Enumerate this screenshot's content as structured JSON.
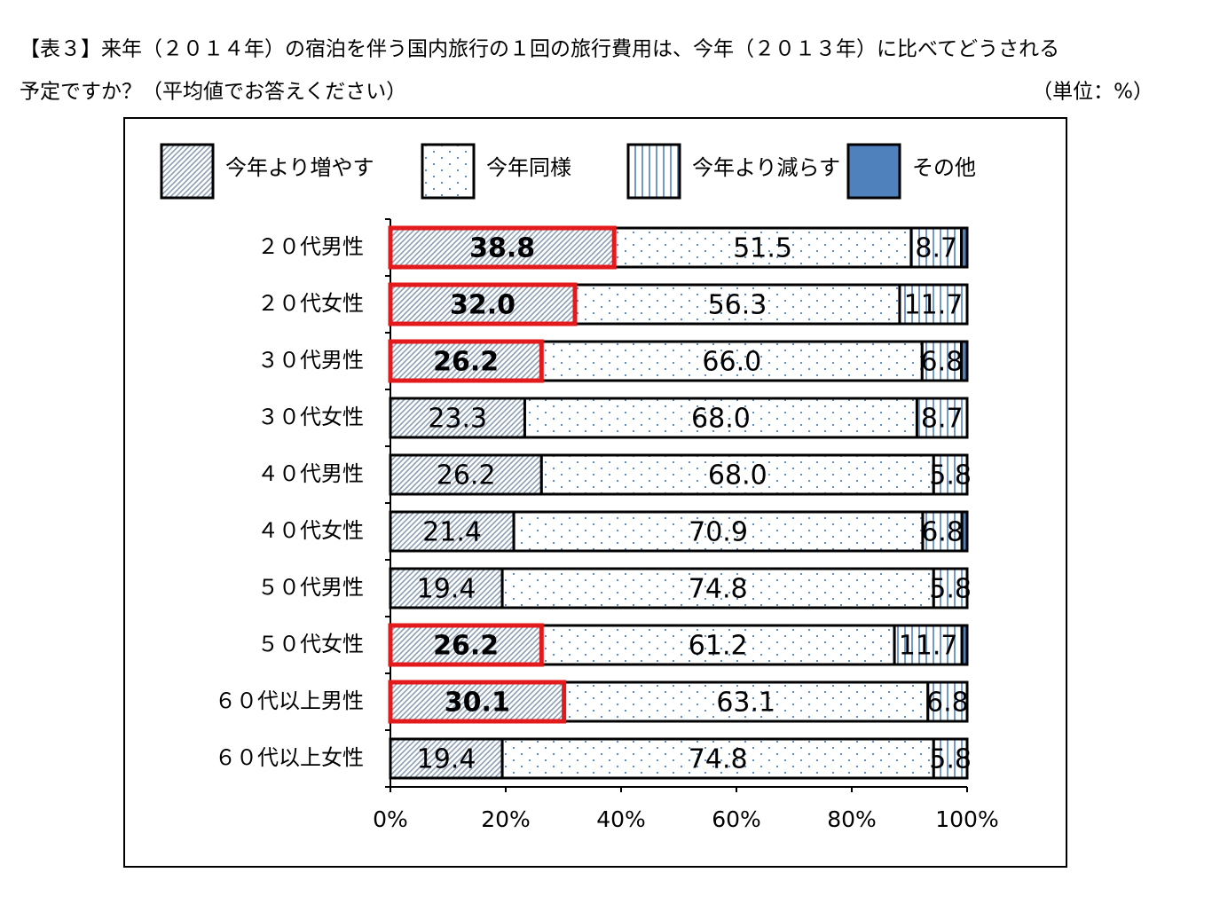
{
  "chart_data": {
    "type": "stacked-bar-horizontal",
    "title": [
      "【表３】来年（２０１４年）の宿泊を伴う国内旅行の１回の旅行費用は、今年（２０１３年）に比べてどうされる",
      "予定ですか？（平均値でお答えください）"
    ],
    "unit_note": "（単位：%）",
    "categories": [
      "２０代男性",
      "２０代女性",
      "３０代男性",
      "３０代女性",
      "４０代男性",
      "４０代女性",
      "５０代男性",
      "５０代女性",
      "６０代以上男性",
      "６０代以上女性"
    ],
    "series": [
      {
        "name": "今年より増やす",
        "color": "#8ea0b8",
        "pattern": "diagonal",
        "highlight": [
          0,
          1,
          2,
          7,
          8
        ],
        "highlight_color": "#e31a1c",
        "values": [
          38.8,
          32.0,
          26.2,
          23.3,
          26.2,
          21.4,
          19.4,
          26.2,
          30.1,
          19.4
        ],
        "value_labels": [
          "38.8",
          "32.0",
          "26.2",
          "23.3",
          "26.2",
          "21.4",
          "19.4",
          "26.2",
          "30.1",
          "19.4"
        ]
      },
      {
        "name": "今年同様",
        "color": "#4f81bd",
        "pattern": "dots",
        "values": [
          51.5,
          56.3,
          66.0,
          68.0,
          68.0,
          70.9,
          74.8,
          61.2,
          63.1,
          74.8
        ],
        "value_labels": [
          "51.5",
          "56.3",
          "66.0",
          "68.0",
          "68.0",
          "70.9",
          "74.8",
          "61.2",
          "63.1",
          "74.8"
        ]
      },
      {
        "name": "今年より減らす",
        "color": "#4f81bd",
        "pattern": "vertical",
        "values": [
          8.7,
          11.7,
          6.8,
          8.7,
          5.8,
          6.8,
          5.8,
          11.7,
          6.8,
          5.8
        ],
        "value_labels": [
          "8.7",
          "11.7",
          "6.8",
          "8.7",
          "5.8",
          "6.8",
          "5.8",
          "11.7",
          "6.8",
          "5.8"
        ]
      },
      {
        "name": "その他",
        "color": "#4f81bd",
        "pattern": "solid",
        "values": [
          1.0,
          0,
          1.0,
          0,
          0,
          0.9,
          0,
          0.9,
          0,
          0
        ]
      }
    ],
    "xlim": [
      0,
      100
    ],
    "xticks": [
      {
        "value": 0,
        "label": "0%"
      },
      {
        "value": 20,
        "label": "20%"
      },
      {
        "value": 40,
        "label": "40%"
      },
      {
        "value": 60,
        "label": "60%"
      },
      {
        "value": 80,
        "label": "80%"
      },
      {
        "value": 100,
        "label": "100%"
      }
    ],
    "grid": false
  }
}
